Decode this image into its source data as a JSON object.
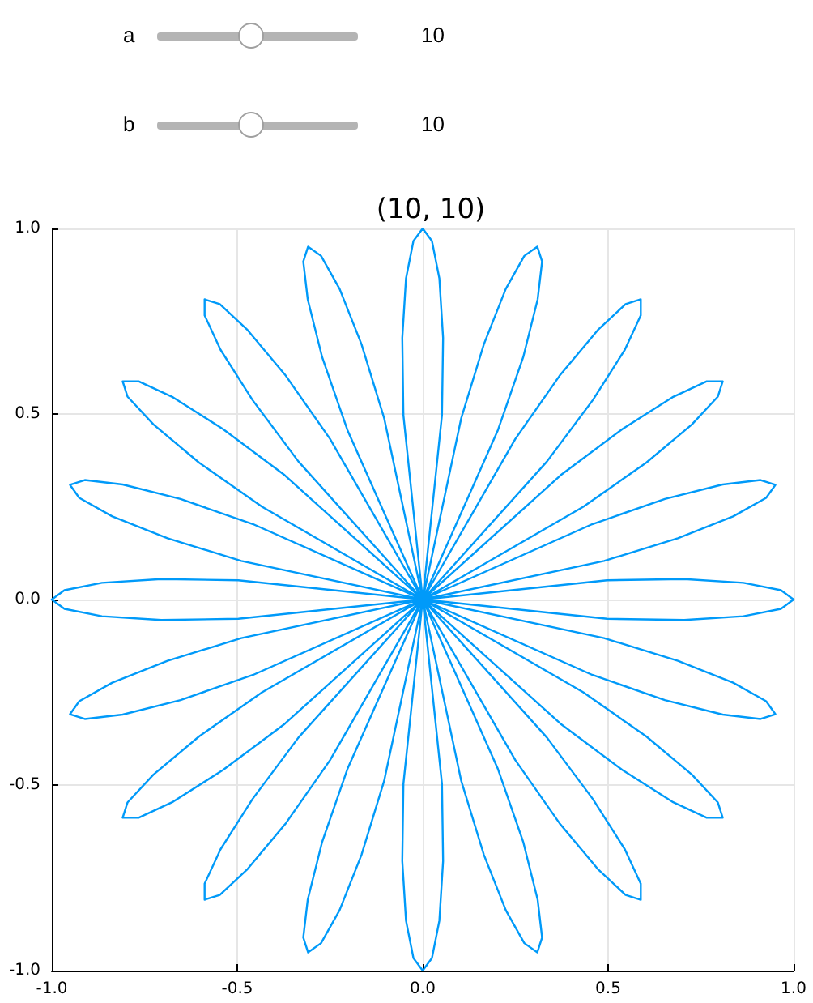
{
  "chart_data": {
    "type": "line",
    "title": "(10, 10)",
    "annotations": [
      "a",
      "10",
      "b",
      "10"
    ],
    "series": [
      {
        "color": "#009af9",
        "x": [
          1,
          0.966,
          0.865,
          0.705,
          0.497,
          0,
          0.489,
          0.688,
          0.837,
          0.926,
          0.951,
          0.911,
          0.809,
          0.653,
          0.457,
          0,
          0.433,
          0.603,
          0.726,
          0.796,
          0.809,
          0.766,
          0.673,
          0.538,
          0.372,
          0,
          0.335,
          0.459,
          0.545,
          0.588,
          0.588,
          0.547,
          0.472,
          0.369,
          0.25,
          0,
          0.203,
          0.271,
          0.31,
          0.322,
          0.309,
          0.274,
          0.224,
          0.165,
          0.104,
          0,
          0.052,
          0.055,
          0.045,
          0.025,
          0,
          -0.025,
          -0.045,
          -0.055,
          -0.052,
          0,
          -0.104,
          -0.165,
          -0.224,
          -0.274,
          -0.309,
          -0.322,
          -0.31,
          -0.271,
          -0.203,
          0,
          -0.25,
          -0.369,
          -0.472,
          -0.547,
          -0.588,
          -0.588,
          -0.545,
          -0.459,
          -0.335,
          0,
          -0.372,
          -0.538,
          -0.673,
          -0.766,
          -0.809,
          -0.796,
          -0.726,
          -0.603,
          -0.433,
          0,
          -0.457,
          -0.653,
          -0.809,
          -0.911,
          -0.951,
          -0.926,
          -0.837,
          -0.688,
          -0.489,
          0,
          -0.497,
          -0.705,
          -0.865,
          -0.966,
          -1
        ],
        "values": [
          0,
          0.025,
          0.045,
          0.055,
          0.052,
          0,
          0.104,
          0.165,
          0.224,
          0.274,
          0.309,
          0.322,
          0.31,
          0.271,
          0.203,
          0,
          0.25,
          0.369,
          0.472,
          0.547,
          0.588,
          0.588,
          0.545,
          0.459,
          0.335,
          0,
          0.372,
          0.538,
          0.673,
          0.766,
          0.809,
          0.796,
          0.726,
          0.603,
          0.433,
          0,
          0.457,
          0.653,
          0.809,
          0.911,
          0.951,
          0.926,
          0.837,
          0.688,
          0.489,
          0,
          0.497,
          0.705,
          0.865,
          0.966,
          1,
          0.966,
          0.865,
          0.705,
          0.497,
          0,
          0.489,
          0.688,
          0.837,
          0.926,
          0.951,
          0.911,
          0.809,
          0.653,
          0.457,
          0,
          0.433,
          0.603,
          0.726,
          0.796,
          0.809,
          0.766,
          0.673,
          0.538,
          0.372,
          0,
          0.335,
          0.459,
          0.545,
          0.588,
          0.588,
          0.547,
          0.472,
          0.369,
          0.25,
          0,
          0.203,
          0.271,
          0.31,
          0.322,
          0.309,
          0.274,
          0.224,
          0.165,
          0.104,
          0,
          0.052,
          0.055,
          0.045,
          0.025,
          0
        ]
      },
      {
        "color": "#009af9",
        "x": [
          -1,
          -0.966,
          -0.865,
          -0.705,
          -0.497,
          0,
          -0.489,
          -0.688,
          -0.837,
          -0.926,
          -0.951,
          -0.911,
          -0.809,
          -0.653,
          -0.457,
          0,
          -0.433,
          -0.603,
          -0.726,
          -0.796,
          -0.809,
          -0.766,
          -0.673,
          -0.538,
          -0.372,
          0,
          -0.335,
          -0.459,
          -0.545,
          -0.588,
          -0.588,
          -0.547,
          -0.472,
          -0.369,
          -0.25,
          0,
          -0.203,
          -0.271,
          -0.31,
          -0.322,
          -0.309,
          -0.274,
          -0.224,
          -0.165,
          -0.104,
          0,
          -0.052,
          -0.055,
          -0.045,
          -0.025,
          0,
          0.025,
          0.045,
          0.055,
          0.052,
          0,
          0.104,
          0.165,
          0.224,
          0.274,
          0.309,
          0.322,
          0.31,
          0.271,
          0.203,
          0,
          0.25,
          0.369,
          0.472,
          0.547,
          0.588,
          0.588,
          0.545,
          0.459,
          0.335,
          0,
          0.372,
          0.538,
          0.673,
          0.766,
          0.809,
          0.796,
          0.726,
          0.603,
          0.433,
          0,
          0.457,
          0.653,
          0.809,
          0.911,
          0.951,
          0.926,
          0.837,
          0.688,
          0.489,
          0,
          0.497,
          0.705,
          0.865,
          0.966,
          1
        ],
        "values": [
          0,
          -0.025,
          -0.045,
          -0.055,
          -0.052,
          0,
          -0.104,
          -0.165,
          -0.224,
          -0.274,
          -0.309,
          -0.322,
          -0.31,
          -0.271,
          -0.203,
          0,
          -0.25,
          -0.369,
          -0.472,
          -0.547,
          -0.588,
          -0.588,
          -0.545,
          -0.459,
          -0.335,
          0,
          -0.372,
          -0.538,
          -0.673,
          -0.766,
          -0.809,
          -0.796,
          -0.726,
          -0.603,
          -0.433,
          0,
          -0.457,
          -0.653,
          -0.809,
          -0.911,
          -0.951,
          -0.926,
          -0.837,
          -0.688,
          -0.489,
          0,
          -0.497,
          -0.705,
          -0.865,
          -0.966,
          -1,
          -0.966,
          -0.865,
          -0.705,
          -0.497,
          0,
          -0.489,
          -0.688,
          -0.837,
          -0.926,
          -0.951,
          -0.911,
          -0.809,
          -0.653,
          -0.457,
          0,
          -0.433,
          -0.603,
          -0.726,
          -0.796,
          -0.809,
          -0.766,
          -0.673,
          -0.538,
          -0.372,
          0,
          -0.335,
          -0.459,
          -0.545,
          -0.588,
          -0.588,
          -0.547,
          -0.472,
          -0.369,
          -0.25,
          0,
          -0.203,
          -0.271,
          -0.31,
          -0.322,
          -0.309,
          -0.274,
          -0.224,
          -0.165,
          -0.104,
          0,
          -0.052,
          -0.055,
          -0.045,
          -0.025,
          0
        ]
      }
    ],
    "xlim": [
      -1,
      1
    ],
    "ylim": [
      -1,
      1
    ],
    "xticks": [
      {
        "value": -1,
        "label": "-1.0"
      },
      {
        "value": -0.5,
        "label": "-0.5"
      },
      {
        "value": 0,
        "label": "0.0"
      },
      {
        "value": 0.5,
        "label": "0.5"
      },
      {
        "value": 1,
        "label": "1.0"
      }
    ],
    "yticks": [
      {
        "value": -1,
        "label": "-1.0"
      },
      {
        "value": -0.5,
        "label": "-0.5"
      },
      {
        "value": 0,
        "label": "0.0"
      },
      {
        "value": 0.5,
        "label": "0.5"
      },
      {
        "value": 1,
        "label": "1.0"
      }
    ],
    "grid": true,
    "marker": "none",
    "line_style": "solid"
  }
}
